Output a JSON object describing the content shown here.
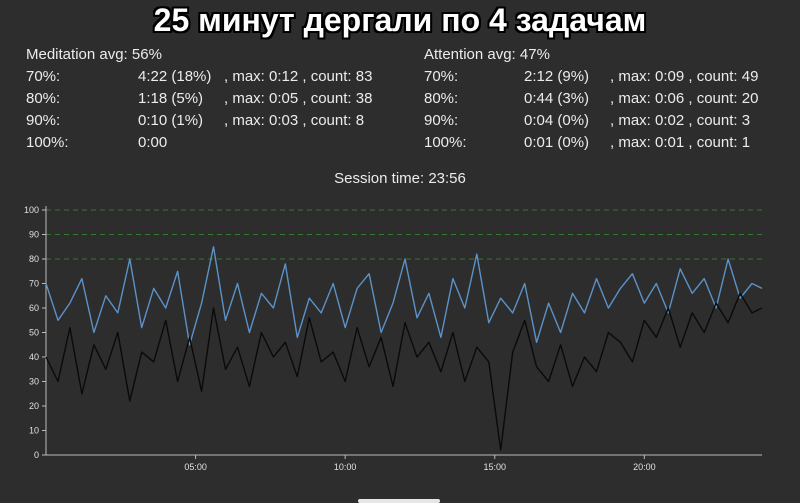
{
  "banner": {
    "text": "25 минут дергали по 4 задачам"
  },
  "meditation": {
    "title": "Meditation avg: 56%",
    "rows": [
      {
        "label": "70%:",
        "value": "4:22 (18%)",
        "extra": ", max: 0:12 , count: 83"
      },
      {
        "label": "80%:",
        "value": "1:18 (5%)",
        "extra": ", max: 0:05 , count: 38"
      },
      {
        "label": "90%:",
        "value": "0:10 (1%)",
        "extra": ", max: 0:03 , count: 8"
      },
      {
        "label": "100%:",
        "value": "0:00",
        "extra": ""
      }
    ]
  },
  "attention": {
    "title": "Attention avg: 47%",
    "rows": [
      {
        "label": "70%:",
        "value": "2:12 (9%)",
        "extra": ", max: 0:09 , count: 49"
      },
      {
        "label": "80%:",
        "value": "0:44 (3%)",
        "extra": ", max: 0:06 , count: 20"
      },
      {
        "label": "90%:",
        "value": "0:04 (0%)",
        "extra": ", max: 0:02 , count: 3"
      },
      {
        "label": "100%:",
        "value": "0:01 (0%)",
        "extra": ", max: 0:01 , count: 1"
      }
    ]
  },
  "session": {
    "text": "Session time: 23:56"
  },
  "chart_data": {
    "type": "line",
    "xlabel": "",
    "ylabel": "",
    "xlim_seconds": [
      0,
      1436
    ],
    "ylim": [
      0,
      100
    ],
    "y_ticks": [
      "0",
      "10",
      "20",
      "30",
      "40",
      "50",
      "60",
      "70",
      "80",
      "90",
      "100"
    ],
    "x_ticks": [
      {
        "label": "05:00",
        "seconds": 300
      },
      {
        "label": "10:00",
        "seconds": 600
      },
      {
        "label": "15:00",
        "seconds": 900
      },
      {
        "label": "20:00",
        "seconds": 1200
      }
    ],
    "threshold_lines": [
      80,
      90,
      100
    ],
    "colors": {
      "meditation": "#5b92c8",
      "attention": "#0a0a0a",
      "threshold": "#2f7a2f",
      "axis": "#bbbbbb"
    },
    "series": [
      {
        "name": "Meditation",
        "color": "#5b92c8",
        "x_seconds": [
          0,
          24,
          48,
          72,
          96,
          120,
          144,
          168,
          192,
          216,
          240,
          264,
          288,
          312,
          336,
          360,
          384,
          408,
          432,
          456,
          480,
          504,
          528,
          552,
          576,
          600,
          624,
          648,
          672,
          696,
          720,
          744,
          768,
          792,
          816,
          840,
          864,
          888,
          912,
          936,
          960,
          984,
          1008,
          1032,
          1056,
          1080,
          1104,
          1128,
          1152,
          1176,
          1200,
          1224,
          1248,
          1272,
          1296,
          1320,
          1344,
          1368,
          1392,
          1416,
          1436
        ],
        "values": [
          70,
          55,
          62,
          72,
          50,
          65,
          58,
          80,
          52,
          68,
          60,
          75,
          45,
          62,
          85,
          55,
          70,
          50,
          66,
          60,
          78,
          48,
          64,
          58,
          70,
          52,
          68,
          74,
          50,
          62,
          80,
          56,
          66,
          48,
          72,
          60,
          82,
          54,
          64,
          58,
          70,
          46,
          62,
          50,
          66,
          58,
          72,
          60,
          68,
          74,
          62,
          70,
          58,
          76,
          66,
          72,
          60,
          80,
          64,
          70,
          68
        ]
      },
      {
        "name": "Attention",
        "color": "#0a0a0a",
        "x_seconds": [
          0,
          24,
          48,
          72,
          96,
          120,
          144,
          168,
          192,
          216,
          240,
          264,
          288,
          312,
          336,
          360,
          384,
          408,
          432,
          456,
          480,
          504,
          528,
          552,
          576,
          600,
          624,
          648,
          672,
          696,
          720,
          744,
          768,
          792,
          816,
          840,
          864,
          888,
          912,
          936,
          960,
          984,
          1008,
          1032,
          1056,
          1080,
          1104,
          1128,
          1152,
          1176,
          1200,
          1224,
          1248,
          1272,
          1296,
          1320,
          1344,
          1368,
          1392,
          1416,
          1436
        ],
        "values": [
          40,
          30,
          52,
          25,
          45,
          35,
          50,
          22,
          42,
          38,
          55,
          30,
          48,
          26,
          60,
          35,
          44,
          28,
          50,
          40,
          46,
          32,
          56,
          38,
          42,
          30,
          52,
          36,
          48,
          28,
          54,
          40,
          46,
          34,
          50,
          30,
          44,
          38,
          2,
          42,
          55,
          36,
          30,
          45,
          28,
          40,
          34,
          50,
          46,
          38,
          55,
          48,
          60,
          44,
          58,
          50,
          62,
          54,
          66,
          58,
          60
        ]
      }
    ]
  }
}
